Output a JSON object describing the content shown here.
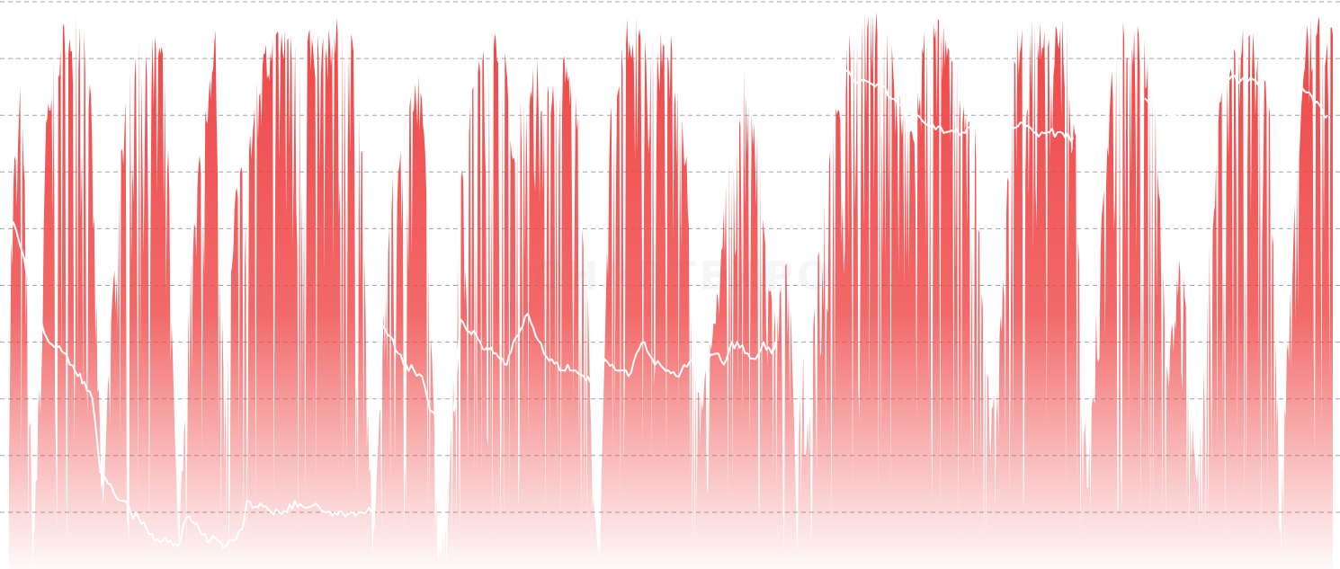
{
  "chart_data": {
    "type": "area",
    "title": "",
    "xlabel": "",
    "ylabel": "",
    "ylim": [
      0,
      100
    ],
    "y_gridlines": [
      100,
      90,
      80,
      70,
      60,
      50,
      40,
      30,
      20,
      10
    ],
    "grid": true,
    "grid_style": "dashed",
    "legend": "none",
    "watermark": "CHARTEXPO",
    "colors": {
      "area": "#ef4444",
      "line": "#ffffff",
      "grid": "#9ca3af",
      "background": "#ffffff"
    },
    "area_envelope": [
      [
        0.0,
        50
      ],
      [
        0.4,
        75
      ],
      [
        0.9,
        88
      ],
      [
        1.4,
        55
      ],
      [
        1.8,
        2
      ],
      [
        2.3,
        35
      ],
      [
        2.8,
        82
      ],
      [
        3.3,
        90
      ],
      [
        3.8,
        95
      ],
      [
        4.3,
        98
      ],
      [
        4.8,
        99
      ],
      [
        5.3,
        99
      ],
      [
        5.8,
        97
      ],
      [
        6.3,
        80
      ],
      [
        6.7,
        40
      ],
      [
        7.1,
        10
      ],
      [
        7.5,
        35
      ],
      [
        8.0,
        60
      ],
      [
        8.5,
        75
      ],
      [
        9.0,
        88
      ],
      [
        9.5,
        92
      ],
      [
        10.0,
        95
      ],
      [
        10.5,
        96
      ],
      [
        11.0,
        96
      ],
      [
        11.5,
        94
      ],
      [
        12.0,
        80
      ],
      [
        12.4,
        35
      ],
      [
        12.8,
        5
      ],
      [
        13.3,
        30
      ],
      [
        13.7,
        55
      ],
      [
        14.2,
        70
      ],
      [
        14.7,
        82
      ],
      [
        15.2,
        90
      ],
      [
        15.6,
        96
      ],
      [
        15.9,
        60
      ],
      [
        16.3,
        30
      ],
      [
        16.7,
        50
      ],
      [
        17.2,
        70
      ],
      [
        17.7,
        78
      ],
      [
        18.2,
        82
      ],
      [
        18.7,
        88
      ],
      [
        19.2,
        92
      ],
      [
        19.7,
        94
      ],
      [
        20.2,
        96
      ],
      [
        20.7,
        97
      ],
      [
        21.2,
        98
      ],
      [
        21.6,
        96
      ],
      [
        22.0,
        95
      ],
      [
        22.4,
        97
      ],
      [
        22.9,
        96
      ],
      [
        23.4,
        95
      ],
      [
        23.8,
        94
      ],
      [
        24.3,
        96
      ],
      [
        24.8,
        98
      ],
      [
        25.3,
        97
      ],
      [
        25.8,
        95
      ],
      [
        26.3,
        94
      ],
      [
        26.7,
        75
      ],
      [
        27.1,
        30
      ],
      [
        27.5,
        5
      ],
      [
        27.9,
        25
      ],
      [
        28.4,
        50
      ],
      [
        28.9,
        70
      ],
      [
        29.4,
        72
      ],
      [
        29.9,
        80
      ],
      [
        30.4,
        85
      ],
      [
        30.9,
        88
      ],
      [
        31.3,
        85
      ],
      [
        31.8,
        50
      ],
      [
        32.2,
        20
      ],
      [
        32.6,
        3
      ],
      [
        33.1,
        10
      ],
      [
        33.6,
        38
      ],
      [
        34.1,
        70
      ],
      [
        34.6,
        82
      ],
      [
        35.1,
        88
      ],
      [
        35.6,
        92
      ],
      [
        36.1,
        94
      ],
      [
        36.6,
        96
      ],
      [
        37.1,
        95
      ],
      [
        37.6,
        90
      ],
      [
        38.0,
        75
      ],
      [
        38.5,
        85
      ],
      [
        39.0,
        88
      ],
      [
        39.5,
        92
      ],
      [
        40.0,
        90
      ],
      [
        40.5,
        85
      ],
      [
        41.0,
        88
      ],
      [
        41.5,
        90
      ],
      [
        42.0,
        92
      ],
      [
        42.5,
        88
      ],
      [
        42.9,
        85
      ],
      [
        43.3,
        60
      ],
      [
        43.7,
        55
      ],
      [
        44.1,
        15
      ],
      [
        44.5,
        3
      ],
      [
        44.9,
        30
      ],
      [
        45.4,
        80
      ],
      [
        45.9,
        92
      ],
      [
        46.4,
        96
      ],
      [
        46.9,
        98
      ],
      [
        47.4,
        99
      ],
      [
        47.9,
        98
      ],
      [
        48.4,
        97
      ],
      [
        48.9,
        96
      ],
      [
        49.4,
        98
      ],
      [
        49.9,
        97
      ],
      [
        50.3,
        88
      ],
      [
        50.8,
        80
      ],
      [
        51.2,
        75
      ],
      [
        51.6,
        40
      ],
      [
        52.0,
        35
      ],
      [
        52.4,
        30
      ],
      [
        52.8,
        40
      ],
      [
        53.3,
        45
      ],
      [
        53.7,
        55
      ],
      [
        54.2,
        70
      ],
      [
        54.7,
        78
      ],
      [
        55.2,
        82
      ],
      [
        55.6,
        90
      ],
      [
        56.0,
        85
      ],
      [
        56.5,
        78
      ],
      [
        57.0,
        65
      ],
      [
        57.4,
        55
      ],
      [
        57.8,
        45
      ],
      [
        58.3,
        50
      ],
      [
        58.7,
        55
      ],
      [
        59.1,
        45
      ],
      [
        59.5,
        10
      ],
      [
        59.9,
        45
      ],
      [
        60.3,
        25
      ],
      [
        60.7,
        45
      ],
      [
        61.2,
        58
      ],
      [
        61.7,
        70
      ],
      [
        62.2,
        78
      ],
      [
        62.7,
        85
      ],
      [
        63.2,
        92
      ],
      [
        63.7,
        98
      ],
      [
        64.2,
        99
      ],
      [
        64.7,
        100
      ],
      [
        65.2,
        99
      ],
      [
        65.7,
        98
      ],
      [
        66.2,
        97
      ],
      [
        66.7,
        96
      ],
      [
        67.2,
        85
      ],
      [
        67.7,
        80
      ],
      [
        68.1,
        78
      ],
      [
        68.6,
        85
      ],
      [
        69.1,
        95
      ],
      [
        69.6,
        99
      ],
      [
        70.1,
        98
      ],
      [
        70.6,
        97
      ],
      [
        71.1,
        96
      ],
      [
        71.6,
        90
      ],
      [
        72.1,
        85
      ],
      [
        72.5,
        80
      ],
      [
        72.9,
        82
      ],
      [
        73.3,
        60
      ],
      [
        73.7,
        40
      ],
      [
        74.2,
        30
      ],
      [
        74.7,
        35
      ],
      [
        75.2,
        60
      ],
      [
        75.7,
        85
      ],
      [
        76.2,
        96
      ],
      [
        76.7,
        98
      ],
      [
        77.2,
        99
      ],
      [
        77.7,
        98
      ],
      [
        78.2,
        96
      ],
      [
        78.7,
        95
      ],
      [
        79.2,
        97
      ],
      [
        79.7,
        98
      ],
      [
        80.2,
        96
      ],
      [
        80.6,
        80
      ],
      [
        81.0,
        40
      ],
      [
        81.4,
        20
      ],
      [
        81.8,
        30
      ],
      [
        82.3,
        55
      ],
      [
        82.8,
        70
      ],
      [
        83.3,
        90
      ],
      [
        83.8,
        97
      ],
      [
        84.3,
        99
      ],
      [
        84.8,
        98
      ],
      [
        85.3,
        96
      ],
      [
        85.8,
        94
      ],
      [
        86.3,
        92
      ],
      [
        86.7,
        80
      ],
      [
        87.1,
        60
      ],
      [
        87.5,
        35
      ],
      [
        87.9,
        45
      ],
      [
        88.4,
        55
      ],
      [
        88.9,
        50
      ],
      [
        89.3,
        30
      ],
      [
        89.7,
        15
      ],
      [
        90.1,
        30
      ],
      [
        90.6,
        55
      ],
      [
        91.1,
        70
      ],
      [
        91.5,
        90
      ],
      [
        92.0,
        92
      ],
      [
        92.5,
        95
      ],
      [
        93.0,
        98
      ],
      [
        93.5,
        97
      ],
      [
        94.0,
        95
      ],
      [
        94.5,
        92
      ],
      [
        94.9,
        90
      ],
      [
        95.3,
        85
      ],
      [
        95.7,
        40
      ],
      [
        96.1,
        20
      ],
      [
        96.5,
        38
      ],
      [
        97.0,
        62
      ],
      [
        97.5,
        80
      ],
      [
        98.0,
        96
      ],
      [
        98.5,
        97
      ],
      [
        99.0,
        98
      ],
      [
        99.5,
        96
      ],
      [
        99.8,
        96
      ]
    ],
    "series": [
      {
        "points": [
          [
            0.0,
            61
          ],
          [
            0.5,
            60
          ],
          [
            1.0,
            56
          ],
          [
            1.5,
            51
          ],
          [
            2.0,
            48
          ],
          [
            2.5,
            43
          ],
          [
            3.0,
            40
          ],
          [
            3.6,
            39
          ],
          [
            4.2,
            38
          ],
          [
            4.6,
            36
          ],
          [
            5.2,
            34
          ],
          [
            5.7,
            33
          ],
          [
            6.3,
            30
          ],
          [
            6.9,
            17
          ],
          [
            7.5,
            15
          ],
          [
            8.0,
            13
          ],
          [
            8.6,
            12
          ],
          [
            9.2,
            10
          ],
          [
            9.8,
            9
          ],
          [
            10.4,
            7
          ],
          [
            11.0,
            5
          ],
          [
            11.6,
            5
          ],
          [
            12.2,
            5
          ],
          [
            12.8,
            4
          ],
          [
            13.4,
            9
          ],
          [
            14.0,
            8
          ],
          [
            14.6,
            6
          ],
          [
            15.2,
            5
          ],
          [
            15.8,
            5
          ],
          [
            16.4,
            4
          ],
          [
            17.0,
            5
          ],
          [
            17.6,
            7
          ],
          [
            18.0,
            12
          ],
          [
            18.6,
            11
          ],
          [
            19.2,
            11
          ],
          [
            19.8,
            10
          ],
          [
            20.4,
            10
          ],
          [
            21.0,
            10
          ],
          [
            21.6,
            12
          ],
          [
            22.2,
            11
          ],
          [
            22.8,
            11
          ],
          [
            23.4,
            11
          ],
          [
            24.0,
            10
          ],
          [
            24.6,
            10
          ],
          [
            25.2,
            10
          ],
          [
            25.8,
            10
          ],
          [
            26.4,
            10
          ],
          [
            27.0,
            10
          ],
          [
            27.6,
            10
          ],
          [
            28.2,
            43
          ],
          [
            28.8,
            41
          ],
          [
            29.4,
            38
          ],
          [
            30.0,
            36
          ],
          [
            30.6,
            35
          ],
          [
            31.2,
            34
          ],
          [
            31.8,
            28
          ],
          [
            32.4,
            27
          ],
          [
            33.0,
            27
          ],
          [
            33.6,
            28
          ],
          [
            34.1,
            44
          ],
          [
            34.6,
            42
          ],
          [
            35.1,
            42
          ],
          [
            35.6,
            40
          ],
          [
            36.1,
            39
          ],
          [
            36.6,
            38
          ],
          [
            37.1,
            37
          ],
          [
            37.6,
            36
          ],
          [
            38.1,
            40
          ],
          [
            38.6,
            42
          ],
          [
            39.2,
            45
          ],
          [
            39.8,
            41
          ],
          [
            40.4,
            38
          ],
          [
            41.0,
            37
          ],
          [
            41.6,
            35
          ],
          [
            42.2,
            36
          ],
          [
            42.8,
            35
          ],
          [
            43.4,
            34
          ],
          [
            43.9,
            33
          ],
          [
            44.4,
            35
          ],
          [
            45.0,
            37
          ],
          [
            45.6,
            36
          ],
          [
            46.2,
            35
          ],
          [
            46.8,
            34
          ],
          [
            47.4,
            38
          ],
          [
            48.0,
            40
          ],
          [
            48.6,
            37
          ],
          [
            49.2,
            36
          ],
          [
            49.8,
            35
          ],
          [
            50.4,
            34
          ],
          [
            51.0,
            36
          ],
          [
            51.6,
            37
          ],
          [
            52.2,
            35
          ],
          [
            52.8,
            37
          ],
          [
            53.4,
            38
          ],
          [
            54.0,
            36
          ],
          [
            54.6,
            40
          ],
          [
            55.2,
            39
          ],
          [
            55.8,
            38
          ],
          [
            56.4,
            37
          ],
          [
            57.0,
            40
          ],
          [
            57.6,
            38
          ],
          [
            57.9,
            40
          ]
        ]
      },
      {
        "points": [
          [
            62.2,
            90
          ],
          [
            62.6,
            90
          ],
          [
            63.0,
            89
          ],
          [
            63.6,
            87
          ],
          [
            64.2,
            86
          ],
          [
            64.8,
            86
          ],
          [
            65.4,
            85
          ],
          [
            66.0,
            85
          ],
          [
            66.6,
            83
          ],
          [
            67.2,
            82
          ],
          [
            67.8,
            80
          ],
          [
            68.4,
            80
          ],
          [
            69.0,
            79
          ],
          [
            69.6,
            78
          ],
          [
            70.2,
            78
          ],
          [
            70.8,
            77
          ],
          [
            71.4,
            77
          ],
          [
            72.0,
            77
          ],
          [
            72.6,
            78
          ],
          [
            73.2,
            78
          ],
          [
            73.8,
            78
          ],
          [
            74.4,
            77
          ],
          [
            75.0,
            77
          ],
          [
            75.6,
            78
          ],
          [
            76.2,
            78
          ],
          [
            76.8,
            78
          ],
          [
            77.4,
            77
          ],
          [
            78.0,
            77
          ],
          [
            78.6,
            77
          ],
          [
            79.2,
            77
          ],
          [
            79.8,
            76
          ],
          [
            80.4,
            76
          ]
        ]
      },
      {
        "points": [
          [
            85.8,
            83
          ],
          [
            86.4,
            82
          ],
          [
            87.0,
            81
          ],
          [
            87.6,
            80
          ],
          [
            88.0,
            80
          ],
          [
            88.2,
            80
          ]
        ]
      },
      {
        "points": [
          [
            91.2,
            88
          ],
          [
            91.8,
            87
          ],
          [
            92.4,
            87
          ],
          [
            93.0,
            86
          ],
          [
            93.6,
            86
          ],
          [
            94.2,
            86
          ],
          [
            94.6,
            86
          ]
        ]
      },
      {
        "points": [
          [
            96.8,
            87
          ],
          [
            97.4,
            85
          ],
          [
            98.0,
            84
          ],
          [
            98.6,
            82
          ],
          [
            99.2,
            81
          ],
          [
            99.6,
            80
          ]
        ]
      }
    ]
  }
}
